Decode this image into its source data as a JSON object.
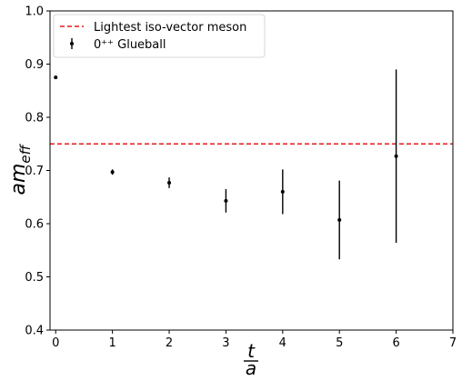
{
  "chart_data": {
    "type": "scatter",
    "title": "",
    "xlabel": {
      "numerator": "t",
      "denominator": "a"
    },
    "ylabel": {
      "base": "am",
      "subscript": "eff"
    },
    "xlim": [
      -0.1,
      7
    ],
    "ylim": [
      0.4,
      1.0
    ],
    "xticks": [
      "0",
      "1",
      "2",
      "3",
      "4",
      "5",
      "6",
      "7"
    ],
    "yticks": [
      "0.4",
      "0.5",
      "0.6",
      "0.7",
      "0.8",
      "0.9",
      "1.0"
    ],
    "grid": false,
    "legend_position": "top-left",
    "series": [
      {
        "name": "0⁺⁺ Glueball",
        "kind": "errorbar",
        "color": "#000000",
        "x": [
          0,
          1,
          2,
          3,
          4,
          5,
          6
        ],
        "y": [
          0.875,
          0.697,
          0.677,
          0.643,
          0.66,
          0.607,
          0.727
        ],
        "err": [
          0.003,
          0.005,
          0.01,
          0.022,
          0.042,
          0.074,
          0.163
        ]
      }
    ],
    "reference_lines": [
      {
        "name": "Lightest iso-vector meson",
        "orientation": "horizontal",
        "y": 0.75,
        "style": "dashed",
        "color": "#e41a1c"
      }
    ]
  }
}
